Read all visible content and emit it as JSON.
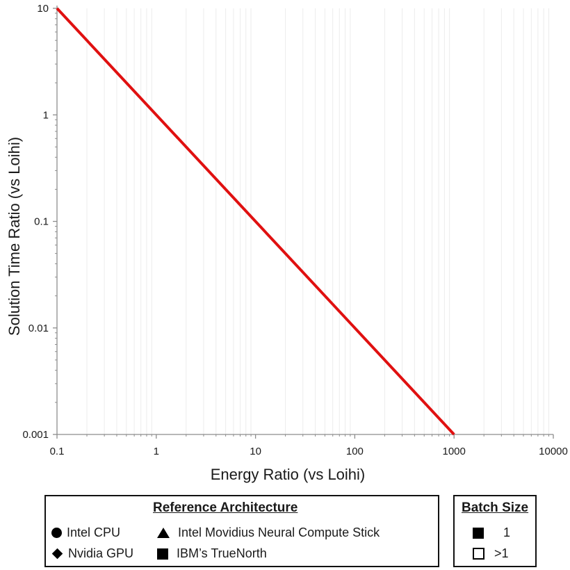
{
  "chart_data": {
    "type": "line",
    "xscale": "log",
    "yscale": "log",
    "xlabel": "Energy Ratio (vs Loihi)",
    "ylabel": "Solution Time Ratio (vs Loihi)",
    "xlim": [
      0.1,
      10000
    ],
    "ylim": [
      0.001,
      10
    ],
    "x_ticks": [
      "0.1",
      "1",
      "10",
      "100",
      "1000",
      "10000"
    ],
    "y_ticks": [
      "10",
      "1",
      "0.1",
      "0.01",
      "0.001"
    ],
    "grid": false,
    "series": [
      {
        "x": [
          0.1,
          1000
        ],
        "y": [
          10,
          0.001
        ],
        "color": "#e01010"
      }
    ]
  },
  "legend": {
    "reference": {
      "title": "Reference Architecture",
      "items": [
        {
          "marker": "circle",
          "label": "Intel CPU"
        },
        {
          "marker": "triangle",
          "label": "Intel Movidius Neural Compute Stick"
        },
        {
          "marker": "diamond",
          "label": "Nvidia GPU"
        },
        {
          "marker": "square",
          "label": "IBM’s TrueNorth"
        }
      ]
    },
    "batch": {
      "title": "Batch Size",
      "items": [
        {
          "marker": "filled-square",
          "label": "1"
        },
        {
          "marker": "open-square",
          "label": ">1"
        }
      ]
    }
  }
}
